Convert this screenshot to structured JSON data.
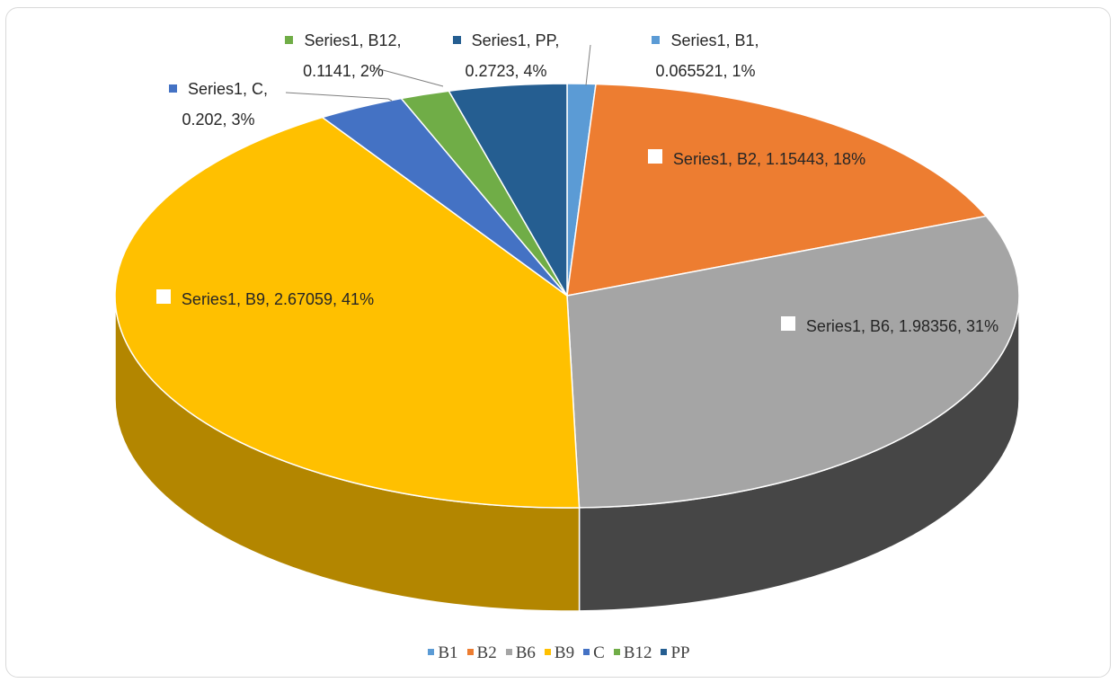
{
  "chart_data": {
    "type": "pie3d",
    "series_name": "Series1",
    "categories": [
      "B1",
      "B2",
      "B6",
      "B9",
      "C",
      "B12",
      "PP"
    ],
    "values": [
      0.065521,
      1.15443,
      1.98356,
      2.67059,
      0.202,
      0.1141,
      0.2723
    ],
    "value_labels": [
      "Series1, B1, 0.065521, 1%",
      "Series1, B2, 1.15443, 18%",
      "Series1, B6, 1.98356, 31%",
      "Series1, B9, 2.67059, 41%",
      "Series1, C, 0.202, 3%",
      "Series1, B12, 0.1141, 2%",
      "Series1, PP, 0.2723, 4%"
    ],
    "colors": [
      "#5b9bd5",
      "#ed7d31",
      "#a5a5a5",
      "#ffc000",
      "#4472c4",
      "#70ad47",
      "#255e91"
    ],
    "side_colors": [
      "#3d6e9c",
      "#a8561f",
      "#464646",
      "#b38600",
      "#2f5090",
      "#4e7a31",
      "#173e62"
    ],
    "legend": "bottom"
  }
}
